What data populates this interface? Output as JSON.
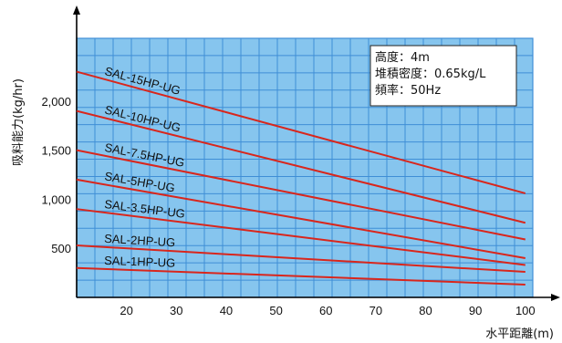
{
  "chart_data": {
    "type": "line",
    "xlabel": "水平距離(m)",
    "ylabel": "吸料能力(kg/hr)",
    "x_ticks": [
      20,
      30,
      40,
      50,
      60,
      70,
      80,
      90,
      100
    ],
    "y_ticks": [
      500,
      1000,
      1500,
      2000
    ],
    "y_tick_labels": [
      "500",
      "1,000",
      "1,500",
      "2,000"
    ],
    "xlim": [
      10,
      101.5
    ],
    "ylim": [
      0,
      2640
    ],
    "grid": true,
    "background_color": "#86c5ee",
    "grid_color": "#3f8ed6",
    "line_color": "#d9261c",
    "annotation": [
      "高度：4m",
      "堆積密度：0.65kg/L",
      "頻率：50Hz"
    ],
    "series": [
      {
        "name": "SAL-15HP-UG",
        "x": [
          10,
          100
        ],
        "y": [
          2300,
          1060
        ]
      },
      {
        "name": "SAL-10HP-UG",
        "x": [
          10,
          100
        ],
        "y": [
          1900,
          760
        ]
      },
      {
        "name": "SAL-7.5HP-UG",
        "x": [
          10,
          100
        ],
        "y": [
          1500,
          590
        ]
      },
      {
        "name": "SAL-5HP-UG",
        "x": [
          10,
          100
        ],
        "y": [
          1200,
          400
        ]
      },
      {
        "name": "SAL-3.5HP-UG",
        "x": [
          10,
          100
        ],
        "y": [
          900,
          330
        ]
      },
      {
        "name": "SAL-2HP-UG",
        "x": [
          10,
          100
        ],
        "y": [
          530,
          260
        ]
      },
      {
        "name": "SAL-1HP-UG",
        "x": [
          10,
          100
        ],
        "y": [
          300,
          130
        ]
      }
    ]
  }
}
